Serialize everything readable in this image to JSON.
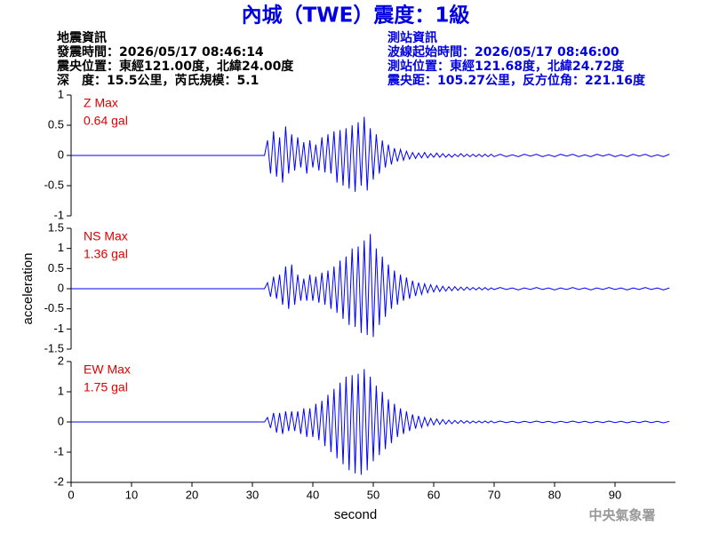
{
  "header": {
    "title": "內城（TWE）震度：1級",
    "quake_info": [
      "地震資訊",
      "發震時間：2026/05/17 08:46:14",
      "震央位置：東經121.00度，北緯24.00度",
      "深　度：15.5公里，芮氏規模：5.1"
    ],
    "station_info": [
      "測站資訊",
      "波線起始時間：2026/05/17 08:46:00",
      "測站位置：東經121.68度，北緯24.72度",
      "震央距：105.27公里，反方位角：221.16度"
    ],
    "agency": "中央氣象署"
  },
  "chart_data": [
    {
      "type": "line",
      "label": "Z Max",
      "max_label": "0.64 gal",
      "color": "#0000ff",
      "x": [
        0,
        32,
        32.5,
        33,
        33.5,
        34,
        34.5,
        35,
        35.5,
        36,
        36.5,
        37,
        37.5,
        38,
        38.5,
        39,
        39.5,
        40,
        40.5,
        41,
        41.5,
        42,
        42.5,
        43,
        43.5,
        44,
        44.5,
        45,
        45.5,
        46,
        46.5,
        47,
        47.5,
        48,
        48.5,
        49,
        49.5,
        50,
        50.5,
        51,
        51.5,
        52,
        52.5,
        53,
        53.5,
        54,
        54.5,
        55,
        55.5,
        56,
        56.5,
        57,
        57.5,
        58,
        58.5,
        59,
        59.5,
        60,
        60.5,
        61,
        61.5,
        62,
        62.5,
        63,
        63.5,
        64,
        64.5,
        65,
        65.5,
        66,
        66.5,
        67,
        67.5,
        68,
        68.5,
        69,
        69.5,
        70,
        71,
        72,
        73,
        74,
        75,
        76,
        77,
        78,
        79,
        80,
        81,
        82,
        83,
        84,
        85,
        86,
        87,
        88,
        89,
        90,
        91,
        92,
        93,
        94,
        95,
        96,
        97,
        98,
        99
      ],
      "values": [
        0,
        0,
        0.25,
        -0.3,
        0.4,
        -0.35,
        0.3,
        -0.45,
        0.48,
        -0.3,
        0.35,
        -0.25,
        0.3,
        -0.2,
        0.22,
        -0.3,
        0.25,
        -0.2,
        0.18,
        -0.25,
        0.3,
        -0.28,
        0.35,
        -0.3,
        0.4,
        -0.45,
        0.42,
        -0.5,
        0.45,
        -0.55,
        0.5,
        -0.6,
        0.55,
        -0.5,
        0.64,
        -0.58,
        0.45,
        -0.4,
        0.35,
        -0.3,
        0.25,
        -0.2,
        0.18,
        -0.15,
        0.12,
        -0.1,
        0.1,
        -0.08,
        0.07,
        -0.06,
        0.05,
        -0.05,
        0.04,
        -0.04,
        0.05,
        -0.04,
        0.03,
        -0.03,
        0.04,
        -0.03,
        0.03,
        -0.03,
        0.02,
        -0.03,
        0.02,
        -0.02,
        0.03,
        -0.02,
        0.02,
        -0.02,
        0.02,
        -0.02,
        0.02,
        -0.02,
        0.02,
        -0.02,
        0.02,
        -0.02,
        0.02,
        -0.02,
        0.01,
        -0.02,
        0.02,
        -0.01,
        0.02,
        -0.02,
        0.01,
        -0.02,
        0.02,
        -0.01,
        0.02,
        -0.02,
        0.01,
        -0.02,
        0.02,
        -0.01,
        0.02,
        -0.02,
        0.01,
        -0.02,
        0.02,
        -0.01,
        0.02,
        -0.02,
        0.01,
        -0.02,
        0.02
      ],
      "xlim": [
        0,
        100
      ],
      "ylim": [
        -1,
        1
      ],
      "yticks": [
        -1,
        -0.5,
        0,
        0.5,
        1
      ]
    },
    {
      "type": "line",
      "label": "NS Max",
      "max_label": "1.36 gal",
      "color": "#0000ff",
      "ylabel": "acceleration",
      "x": [
        0,
        32,
        32.5,
        33,
        33.5,
        34,
        34.5,
        35,
        35.5,
        36,
        36.5,
        37,
        37.5,
        38,
        38.5,
        39,
        39.5,
        40,
        40.5,
        41,
        41.5,
        42,
        42.5,
        43,
        43.5,
        44,
        44.5,
        45,
        45.5,
        46,
        46.5,
        47,
        47.5,
        48,
        48.5,
        49,
        49.5,
        50,
        50.5,
        51,
        51.5,
        52,
        52.5,
        53,
        53.5,
        54,
        54.5,
        55,
        55.5,
        56,
        56.5,
        57,
        57.5,
        58,
        58.5,
        59,
        59.5,
        60,
        60.5,
        61,
        61.5,
        62,
        62.5,
        63,
        63.5,
        64,
        64.5,
        65,
        65.5,
        66,
        66.5,
        67,
        67.5,
        68,
        68.5,
        69,
        69.5,
        70,
        71,
        72,
        73,
        74,
        75,
        76,
        77,
        78,
        79,
        80,
        81,
        82,
        83,
        84,
        85,
        86,
        87,
        88,
        89,
        90,
        91,
        92,
        93,
        94,
        95,
        96,
        97,
        98,
        99
      ],
      "values": [
        0,
        0,
        0.15,
        -0.2,
        0.3,
        -0.25,
        0.35,
        -0.4,
        0.55,
        -0.5,
        0.6,
        -0.4,
        0.35,
        -0.3,
        0.25,
        -0.3,
        0.35,
        -0.3,
        0.3,
        -0.35,
        0.4,
        -0.4,
        0.45,
        -0.5,
        0.55,
        -0.6,
        0.7,
        -0.75,
        0.8,
        -0.9,
        1.0,
        -0.95,
        1.05,
        -1.1,
        1.2,
        -1.15,
        1.36,
        -1.2,
        1.0,
        -0.9,
        0.8,
        -0.7,
        0.6,
        -0.5,
        0.45,
        -0.4,
        0.35,
        -0.3,
        0.28,
        -0.25,
        0.2,
        -0.18,
        0.15,
        -0.14,
        0.12,
        -0.1,
        0.1,
        -0.08,
        0.08,
        -0.07,
        0.06,
        -0.06,
        0.05,
        -0.05,
        0.05,
        -0.04,
        0.04,
        -0.04,
        0.04,
        -0.03,
        0.03,
        -0.03,
        0.03,
        -0.03,
        0.03,
        -0.03,
        0.02,
        -0.02,
        0.03,
        -0.02,
        0.02,
        -0.03,
        0.02,
        -0.02,
        0.03,
        -0.02,
        0.02,
        -0.03,
        0.02,
        -0.02,
        0.03,
        -0.02,
        0.02,
        -0.03,
        0.02,
        -0.02,
        0.03,
        -0.02,
        0.02,
        -0.03,
        0.02,
        -0.02,
        0.03,
        -0.02,
        0.02,
        -0.03,
        0.02
      ],
      "xlim": [
        0,
        100
      ],
      "ylim": [
        -1.5,
        1.5
      ],
      "yticks": [
        -1.5,
        -1,
        -0.5,
        0,
        0.5,
        1,
        1.5
      ]
    },
    {
      "type": "line",
      "label": "EW Max",
      "max_label": "1.75 gal",
      "color": "#0000ff",
      "xlabel": "second",
      "x": [
        0,
        32,
        32.5,
        33,
        33.5,
        34,
        34.5,
        35,
        35.5,
        36,
        36.5,
        37,
        37.5,
        38,
        38.5,
        39,
        39.5,
        40,
        40.5,
        41,
        41.5,
        42,
        42.5,
        43,
        43.5,
        44,
        44.5,
        45,
        45.5,
        46,
        46.5,
        47,
        47.5,
        48,
        48.5,
        49,
        49.5,
        50,
        50.5,
        51,
        51.5,
        52,
        52.5,
        53,
        53.5,
        54,
        54.5,
        55,
        55.5,
        56,
        56.5,
        57,
        57.5,
        58,
        58.5,
        59,
        59.5,
        60,
        60.5,
        61,
        61.5,
        62,
        62.5,
        63,
        63.5,
        64,
        64.5,
        65,
        65.5,
        66,
        66.5,
        67,
        67.5,
        68,
        68.5,
        69,
        69.5,
        70,
        71,
        72,
        73,
        74,
        75,
        76,
        77,
        78,
        79,
        80,
        81,
        82,
        83,
        84,
        85,
        86,
        87,
        88,
        89,
        90,
        91,
        92,
        93,
        94,
        95,
        96,
        97,
        98,
        99
      ],
      "values": [
        0,
        0,
        0.15,
        -0.2,
        0.3,
        -0.35,
        0.3,
        -0.4,
        0.35,
        -0.3,
        0.35,
        -0.3,
        0.35,
        -0.4,
        0.45,
        -0.5,
        0.45,
        -0.5,
        0.6,
        -0.6,
        0.7,
        -0.8,
        0.9,
        -1.0,
        1.1,
        -1.2,
        1.3,
        -1.4,
        1.5,
        -1.6,
        1.55,
        -1.7,
        1.6,
        -1.75,
        1.75,
        -1.6,
        1.5,
        -1.3,
        1.2,
        -1.1,
        1.0,
        -0.9,
        0.75,
        -0.7,
        0.6,
        -0.5,
        0.45,
        -0.4,
        0.35,
        -0.3,
        0.25,
        -0.22,
        0.2,
        -0.18,
        0.15,
        -0.13,
        0.12,
        -0.1,
        0.1,
        -0.08,
        0.08,
        -0.07,
        0.06,
        -0.06,
        0.05,
        -0.05,
        0.05,
        -0.04,
        0.04,
        -0.04,
        0.03,
        -0.03,
        0.03,
        -0.03,
        0.03,
        -0.03,
        0.03,
        -0.03,
        0.03,
        -0.02,
        0.02,
        -0.03,
        0.02,
        -0.02,
        0.03,
        -0.02,
        0.02,
        -0.03,
        0.02,
        -0.02,
        0.03,
        -0.02,
        0.02,
        -0.03,
        0.02,
        -0.02,
        0.03,
        -0.02,
        0.02,
        -0.03,
        0.02,
        -0.02,
        0.03,
        -0.02,
        0.02,
        -0.03,
        0.02
      ],
      "xlim": [
        0,
        100
      ],
      "ylim": [
        -2,
        2
      ],
      "yticks": [
        -2,
        -1,
        0,
        1,
        2
      ],
      "xticks": [
        0,
        10,
        20,
        30,
        40,
        50,
        60,
        70,
        80,
        90
      ]
    }
  ]
}
